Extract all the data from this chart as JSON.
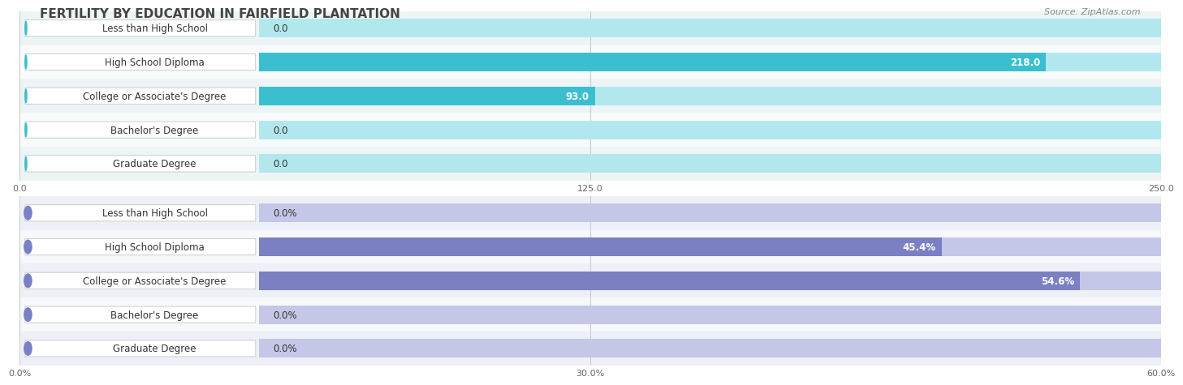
{
  "title": "FERTILITY BY EDUCATION IN FAIRFIELD PLANTATION",
  "source": "Source: ZipAtlas.com",
  "label_color": "#333333",
  "bg_color": "#ffffff",
  "title_color": "#444444",
  "source_color": "#888888",
  "title_fontsize": 11,
  "label_fontsize": 8.5,
  "value_fontsize": 8.5,
  "chart1": {
    "categories": [
      "Less than High School",
      "High School Diploma",
      "College or Associate's Degree",
      "Bachelor's Degree",
      "Graduate Degree"
    ],
    "values": [
      0.0,
      218.0,
      93.0,
      0.0,
      0.0
    ],
    "xlim": [
      0,
      250
    ],
    "xticks": [
      0.0,
      125.0,
      250.0
    ],
    "xtick_labels": [
      "0.0",
      "125.0",
      "250.0"
    ],
    "bar_color": "#3bbfce",
    "bar_bg_color": "#b2e8ed",
    "row_bg_even": "#edf4f6",
    "row_bg_odd": "#f7fbfc"
  },
  "chart2": {
    "categories": [
      "Less than High School",
      "High School Diploma",
      "College or Associate's Degree",
      "Bachelor's Degree",
      "Graduate Degree"
    ],
    "values": [
      0.0,
      45.4,
      54.6,
      0.0,
      0.0
    ],
    "xlim": [
      0,
      60
    ],
    "xticks": [
      0.0,
      30.0,
      60.0
    ],
    "xtick_labels": [
      "0.0%",
      "30.0%",
      "60.0%"
    ],
    "bar_color": "#7b7fc4",
    "bar_bg_color": "#c5c7e8",
    "row_bg_even": "#edf0f6",
    "row_bg_odd": "#f7f8fc"
  }
}
